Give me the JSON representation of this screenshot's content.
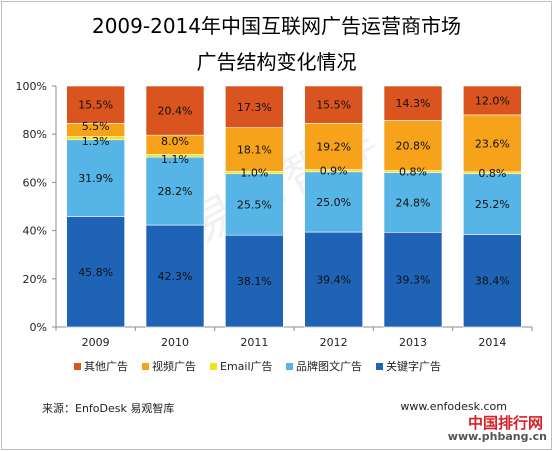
{
  "chart_data": {
    "type": "bar",
    "stacked": true,
    "normalized": true,
    "title": "2009-2014年中国互联网广告运营商市场",
    "subtitle": "广告结构变化情况",
    "categories": [
      "2009",
      "2010",
      "2011",
      "2012",
      "2013",
      "2014"
    ],
    "ylim": [
      0,
      100
    ],
    "yticks": [
      "0%",
      "20%",
      "40%",
      "60%",
      "80%",
      "100%"
    ],
    "legend_position": "bottom",
    "series": [
      {
        "name": "关键字广告",
        "color": "#1f63b6",
        "values": [
          45.8,
          42.3,
          38.1,
          39.4,
          39.3,
          38.4
        ],
        "labels": [
          "45.8%",
          "42.3%",
          "38.1%",
          "39.4%",
          "39.3%",
          "38.4%"
        ]
      },
      {
        "name": "品牌图文广告",
        "color": "#56b4e6",
        "values": [
          31.9,
          28.2,
          25.5,
          25.0,
          24.8,
          25.2
        ],
        "labels": [
          "31.9%",
          "28.2%",
          "25.5%",
          "25.0%",
          "24.8%",
          "25.2%"
        ]
      },
      {
        "name": "Email广告",
        "color": "#f5e218",
        "values": [
          1.3,
          1.1,
          1.0,
          0.9,
          0.8,
          0.8
        ],
        "labels": [
          "1.3%",
          "1.1%",
          "1.0%",
          "0.9%",
          "0.8%",
          "0.8%"
        ]
      },
      {
        "name": "视频广告",
        "color": "#f7a21b",
        "values": [
          5.5,
          8.0,
          18.1,
          19.2,
          20.8,
          23.6
        ],
        "labels": [
          "5.5%",
          "8.0%",
          "18.1%",
          "19.2%",
          "20.8%",
          "23.6%"
        ]
      },
      {
        "name": "其他广告",
        "color": "#d9541f",
        "values": [
          15.5,
          20.4,
          17.3,
          15.5,
          14.3,
          12.0
        ],
        "labels": [
          "15.5%",
          "20.4%",
          "17.3%",
          "15.5%",
          "14.3%",
          "12.0%"
        ]
      }
    ],
    "legend_order": [
      "其他广告",
      "视频广告",
      "Email广告",
      "品牌图文广告",
      "关键字广告"
    ]
  },
  "footer": {
    "source": "来源：EnfoDesk 易观智库",
    "website": "www.enfodesk.com"
  },
  "watermark": {
    "center": "易观智库",
    "corner_cn": "中国排行网",
    "corner_url": "www.phbang.cn"
  }
}
